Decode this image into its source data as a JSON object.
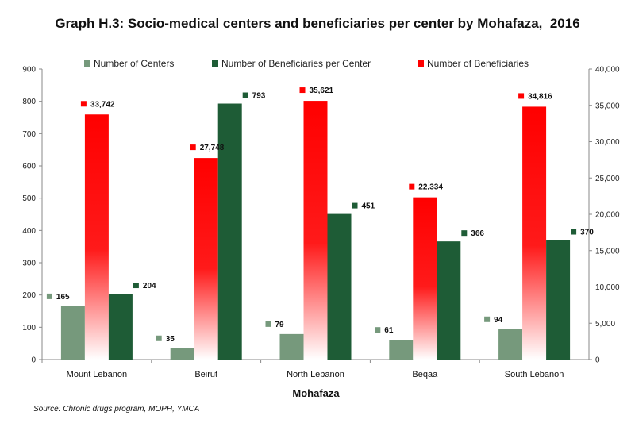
{
  "chart_data": {
    "type": "bar",
    "title": "Graph H.3: Socio-medical centers and beneficiaries per center by Mohafaza,  2016",
    "xlabel": "Mohafaza",
    "categories": [
      "Mount Lebanon",
      "Beirut",
      "North Lebanon",
      "Beqaa",
      "South Lebanon"
    ],
    "y_left": {
      "min": 0,
      "max": 900,
      "ticks": [
        "0",
        "100",
        "200",
        "300",
        "400",
        "500",
        "600",
        "700",
        "800",
        "900"
      ]
    },
    "y_right": {
      "min": 0,
      "max": 40000,
      "ticks": [
        "0",
        "5,000",
        "10,000",
        "15,000",
        "20,000",
        "25,000",
        "30,000",
        "35,000",
        "40,000"
      ]
    },
    "grid": false,
    "legend_position": "top",
    "series": [
      {
        "name": "Number of Centers",
        "axis": "left",
        "color": "#76997c",
        "values": [
          165,
          35,
          79,
          61,
          94
        ],
        "labels": [
          "165",
          "35",
          "79",
          "61",
          "94"
        ]
      },
      {
        "name": "Number of Beneficiaries",
        "axis": "right",
        "color": "#ff0000",
        "gradient_to": "#ffffff",
        "values": [
          33742,
          27748,
          35621,
          22334,
          34816
        ],
        "labels": [
          "33,742",
          "27,748",
          "35,621",
          "22,334",
          "34,816"
        ]
      },
      {
        "name": "Number of Beneficiaries per Center",
        "axis": "left",
        "color": "#1e5c36",
        "values": [
          204,
          793,
          451,
          366,
          370
        ],
        "labels": [
          "204",
          "793",
          "451",
          "366",
          "370"
        ]
      }
    ],
    "legend_order": [
      "Number of Centers",
      "Number of Beneficiaries per Center",
      "Number of Beneficiaries"
    ]
  },
  "source": "Source: Chronic drugs program, MOPH, YMCA"
}
